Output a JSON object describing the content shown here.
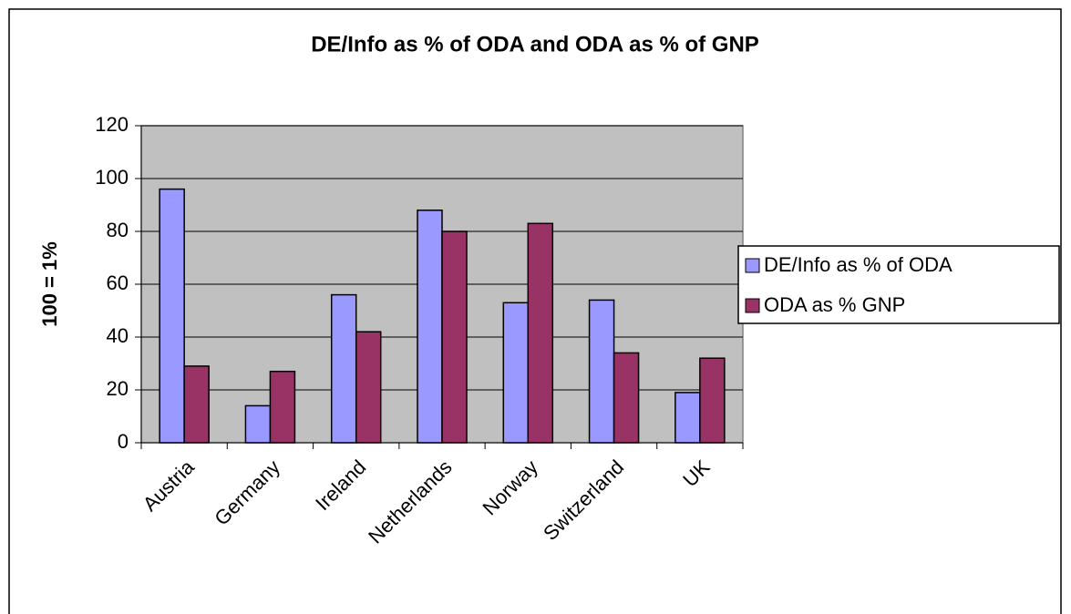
{
  "chart_data": {
    "type": "bar",
    "title": "DE/Info as % of ODA and ODA as % of GNP",
    "y_label": "100 = 1%",
    "categories": [
      "Austria",
      "Germany",
      "Ireland",
      "Netherlands",
      "Norway",
      "Switzerland",
      "UK"
    ],
    "series": [
      {
        "name": "DE/Info as % of ODA",
        "color": "#9999ff",
        "values": [
          96,
          14,
          56,
          88,
          53,
          54,
          19
        ]
      },
      {
        "name": "ODA as % GNP",
        "color": "#993366",
        "values": [
          29,
          27,
          42,
          80,
          83,
          34,
          32
        ]
      }
    ],
    "ylim": [
      0,
      120
    ],
    "yticks": [
      0,
      20,
      40,
      60,
      80,
      100,
      120
    ],
    "grid": true,
    "legend": "right",
    "plot_background": "#c0c0c0"
  }
}
